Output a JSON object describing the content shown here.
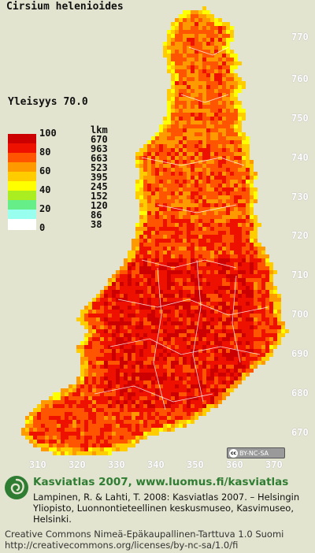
{
  "map": {
    "species": "Cirsium helenioides",
    "frequency_label": "Yleisyys 70.0",
    "legend": {
      "percent_labels": [
        "100",
        "80",
        "60",
        "40",
        "20",
        "0"
      ],
      "count_header": "lkm",
      "counts": [
        "670",
        "963",
        "663",
        "523",
        "395",
        "245",
        "152",
        "120",
        "86",
        "38"
      ],
      "colors": [
        "#cc0000",
        "#ee1100",
        "#ff5500",
        "#ff9900",
        "#ffcc00",
        "#ffff00",
        "#aaee22",
        "#66ee88",
        "#99ffee",
        "#ffffff"
      ]
    },
    "y_ticks": [
      "770",
      "760",
      "750",
      "740",
      "730",
      "720",
      "710",
      "700",
      "690",
      "680",
      "670"
    ],
    "x_ticks": [
      "310",
      "320",
      "330",
      "340",
      "350",
      "360",
      "370"
    ],
    "license_badge": "BY-NC-SA"
  },
  "footer": {
    "heading": "Kasviatlas 2007, www.luomus.fi/kasviatlas",
    "citation": "Lampinen, R. & Lahti, T. 2008: Kasviatlas 2007. – Helsingin Yliopisto, Luonnontieteellinen keskusmuseo, Kasvimuseo, Helsinki.",
    "license_line1": "Creative Commons Nimeä-Epäkaupallinen-Tarttuva 1.0 Suomi",
    "license_line2": "http://creativecommons.org/licenses/by-nc-sa/1.0/fi"
  }
}
